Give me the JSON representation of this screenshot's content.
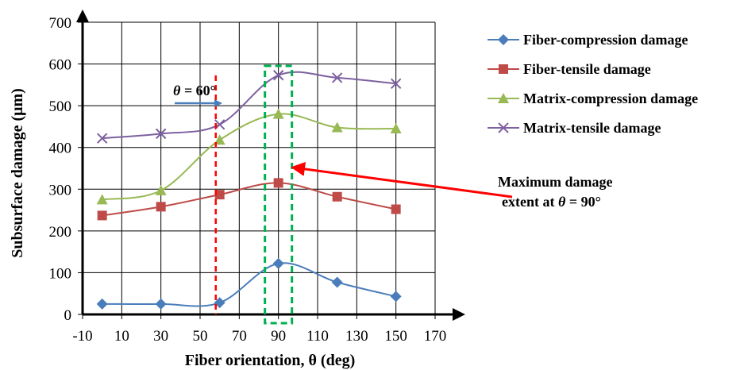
{
  "chart_data": {
    "type": "line",
    "xlabel": "Fiber orientation, θ (deg)",
    "ylabel": "Subsurface damage (μm)",
    "xlim": [
      -10,
      170
    ],
    "ylim": [
      0,
      700
    ],
    "xticks": [
      -10,
      10,
      30,
      50,
      70,
      90,
      110,
      130,
      150,
      170
    ],
    "yticks": [
      0,
      100,
      200,
      300,
      400,
      500,
      600,
      700
    ],
    "grid": true,
    "legend_position": "right",
    "x": [
      0,
      30,
      60,
      90,
      120,
      150
    ],
    "series": [
      {
        "name": "Fiber-compression damage",
        "values": [
          25,
          25,
          28,
          122,
          77,
          43
        ],
        "color": "#4a7ebb",
        "marker": "diamond"
      },
      {
        "name": "Fiber-tensile damage",
        "values": [
          237,
          258,
          287,
          315,
          282,
          252
        ],
        "color": "#be4b48",
        "marker": "square"
      },
      {
        "name": "Matrix-compression damage",
        "values": [
          275,
          297,
          418,
          480,
          448,
          445
        ],
        "color": "#98b954",
        "marker": "triangle"
      },
      {
        "name": "Matrix-tensile damage",
        "values": [
          422,
          433,
          455,
          573,
          567,
          553
        ],
        "color": "#7d60a0",
        "marker": "x"
      }
    ],
    "annotations": {
      "angle_prefix": "θ = ",
      "angle_value": "60°",
      "angle_x": 58,
      "max_line1": "Maximum damage",
      "max_line2_prefix": "extent at ",
      "max_line2_theta": "θ",
      "max_line2_suffix": " = 90°",
      "max_box_x": 90
    }
  }
}
